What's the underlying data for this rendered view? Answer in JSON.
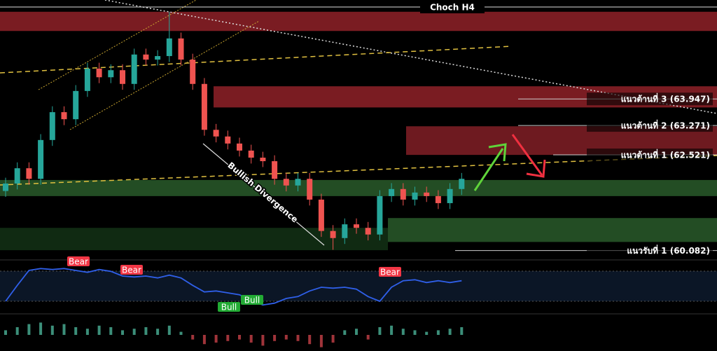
{
  "chart_data": {
    "type": "candlestick",
    "title": "Choch H4",
    "annotation": "Bullish Divergence",
    "ylim": [
      59.86,
      66.47
    ],
    "open": [
      61.6,
      61.79,
      62.18,
      61.91,
      62.9,
      63.61,
      63.43,
      64.15,
      64.72,
      64.5,
      64.68,
      64.33,
      65.08,
      64.95,
      65.04,
      65.49,
      64.95,
      64.33,
      63.16,
      62.99,
      62.81,
      62.63,
      62.45,
      62.36,
      61.91,
      61.74,
      61.91,
      61.38,
      60.58,
      60.4,
      60.75,
      60.66,
      60.49,
      61.47,
      61.65,
      61.38,
      61.56,
      61.47,
      61.29,
      61.65
    ],
    "high": [
      61.94,
      62.33,
      62.33,
      63.05,
      63.76,
      63.76,
      64.3,
      64.87,
      64.87,
      64.83,
      64.83,
      65.23,
      65.23,
      65.19,
      66.17,
      65.64,
      65.1,
      64.48,
      63.31,
      63.14,
      62.96,
      62.78,
      62.6,
      62.51,
      62.06,
      62.06,
      62.06,
      61.53,
      60.73,
      60.9,
      60.9,
      60.81,
      61.62,
      61.8,
      61.8,
      61.71,
      61.71,
      61.62,
      61.8,
      62.06
    ],
    "low": [
      61.45,
      61.64,
      61.76,
      61.76,
      62.75,
      63.28,
      63.28,
      64.0,
      64.35,
      64.35,
      64.18,
      64.18,
      64.8,
      64.8,
      64.89,
      64.8,
      64.18,
      63.01,
      62.84,
      62.66,
      62.48,
      62.3,
      62.21,
      61.76,
      61.59,
      61.59,
      61.23,
      60.43,
      60.1,
      60.25,
      60.51,
      60.34,
      60.34,
      61.32,
      61.23,
      61.23,
      61.32,
      61.14,
      61.14,
      61.5
    ],
    "close": [
      61.79,
      62.18,
      61.91,
      62.9,
      63.61,
      63.43,
      64.15,
      64.72,
      64.5,
      64.68,
      64.33,
      65.08,
      64.95,
      65.04,
      65.49,
      64.95,
      64.33,
      63.16,
      62.99,
      62.81,
      62.63,
      62.45,
      62.36,
      61.91,
      61.74,
      61.91,
      61.38,
      60.58,
      60.4,
      60.75,
      60.66,
      60.49,
      61.47,
      61.65,
      61.38,
      61.56,
      61.47,
      61.29,
      61.65,
      61.91
    ],
    "up_color": "#26a69a",
    "down_color": "#ef5350",
    "zones": [
      {
        "low": 65.68,
        "high": 66.17,
        "color": "#7a1c22"
      },
      {
        "low": 63.73,
        "high": 64.27,
        "color": "#7a1c22"
      },
      {
        "low": 62.52,
        "high": 63.25,
        "color": "#6e1a20"
      },
      {
        "low": 61.47,
        "high": 61.88,
        "color": "#234d24"
      },
      {
        "low": 60.3,
        "high": 60.91,
        "color": "#234d24"
      },
      {
        "low": 60.09,
        "high": 60.66,
        "color": "#102a12"
      }
    ],
    "levels": [
      {
        "value": 63.947,
        "label": "แนวต้านที่ 3 (63.947)"
      },
      {
        "value": 63.271,
        "label": "แนวต้านที่ 2 (63.271)"
      },
      {
        "value": 62.521,
        "label": "แนวต้านที่ 1 (62.521)"
      },
      {
        "value": 60.082,
        "label": "แนวรับที่ 1 (60.082)"
      }
    ],
    "rsi": {
      "ylim": [
        20,
        80
      ],
      "color": "#2f5fe8",
      "values": [
        35,
        52,
        68,
        70,
        69,
        70,
        68,
        66,
        69,
        67,
        62,
        61,
        62,
        60,
        63,
        60,
        52,
        45,
        46,
        44,
        42,
        36,
        31,
        33,
        38,
        40,
        46,
        50,
        49,
        50,
        48,
        40,
        35,
        50,
        57,
        58,
        55,
        57,
        55,
        57
      ],
      "signals": [
        "Bear",
        "Bear",
        "Bull",
        "Bull",
        "Bear"
      ]
    },
    "histogram": {
      "ylim": [
        -1,
        1
      ],
      "values": [
        0.3,
        0.5,
        0.7,
        0.8,
        0.6,
        0.7,
        0.5,
        0.4,
        0.6,
        0.5,
        0.3,
        0.4,
        0.5,
        0.4,
        0.6,
        0.2,
        -0.3,
        -0.6,
        -0.5,
        -0.4,
        -0.3,
        -0.5,
        -0.7,
        -0.4,
        -0.3,
        -0.4,
        -0.6,
        -0.8,
        -0.5,
        0.3,
        0.4,
        -0.3,
        0.5,
        0.6,
        0.4,
        0.3,
        0.2,
        0.3,
        0.4,
        0.5
      ]
    }
  }
}
